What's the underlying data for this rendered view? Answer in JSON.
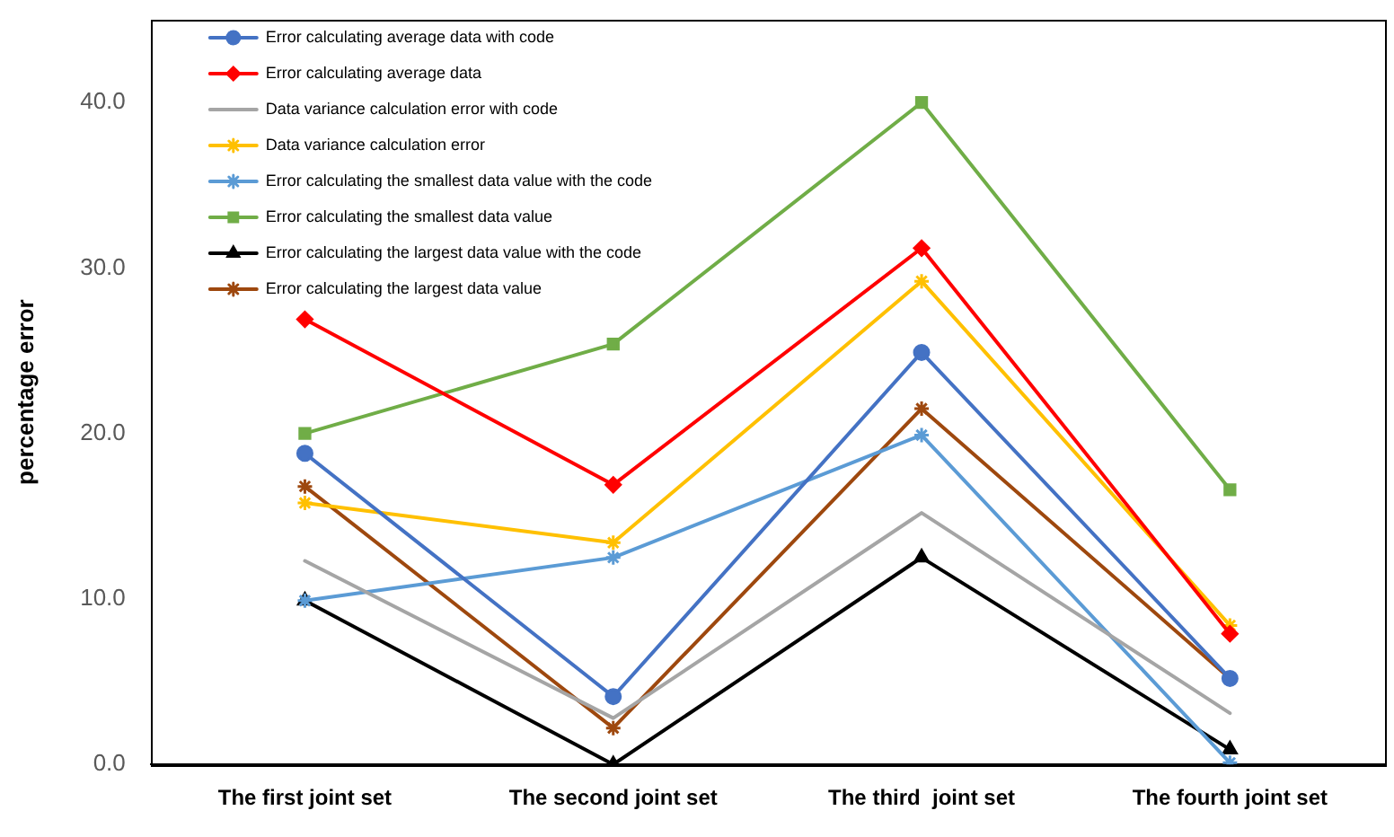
{
  "chart_data": {
    "type": "line",
    "ylabel": "percentage error",
    "categories": [
      "The first joint set",
      "The second joint set",
      "The third  joint set",
      "The fourth joint set"
    ],
    "series": [
      {
        "name": "Error calculating average data with code",
        "color": "#4472c4",
        "marker": "circle",
        "values": [
          18.8,
          4.1,
          24.9,
          5.2
        ]
      },
      {
        "name": "Error calculating average data",
        "color": "#ff0000",
        "marker": "diamond",
        "values": [
          26.9,
          16.9,
          31.2,
          7.9
        ]
      },
      {
        "name": "Data variance calculation error with code",
        "color": "#a5a5a5",
        "marker": "none",
        "values": [
          12.3,
          2.8,
          15.2,
          3.1
        ]
      },
      {
        "name": "Data variance calculation error",
        "color": "#ffc000",
        "marker": "cross",
        "values": [
          15.8,
          13.4,
          29.2,
          8.4
        ]
      },
      {
        "name": "Error calculating the smallest data value with the code",
        "color": "#5b9bd5",
        "marker": "cross",
        "values": [
          9.9,
          12.5,
          19.9,
          0.1
        ]
      },
      {
        "name": "Error calculating the smallest data value",
        "color": "#70ad47",
        "marker": "square",
        "values": [
          20.0,
          25.4,
          40.0,
          16.6
        ]
      },
      {
        "name": "Error calculating the largest data value with the code",
        "color": "#000000",
        "marker": "triangle",
        "values": [
          9.9,
          0.0,
          12.5,
          0.9
        ]
      },
      {
        "name": "Error calculating the largest data value",
        "color": "#9e480e",
        "marker": "cross",
        "values": [
          16.8,
          2.2,
          21.5,
          5.2
        ]
      }
    ],
    "ylim": [
      0,
      45
    ],
    "yticks": [
      {
        "value": 0,
        "label": "0.0"
      },
      {
        "value": 10,
        "label": "10.0"
      },
      {
        "value": 20,
        "label": "20.0"
      },
      {
        "value": 30,
        "label": "30.0"
      },
      {
        "value": 40,
        "label": "40.0"
      }
    ],
    "legend": "top left"
  }
}
